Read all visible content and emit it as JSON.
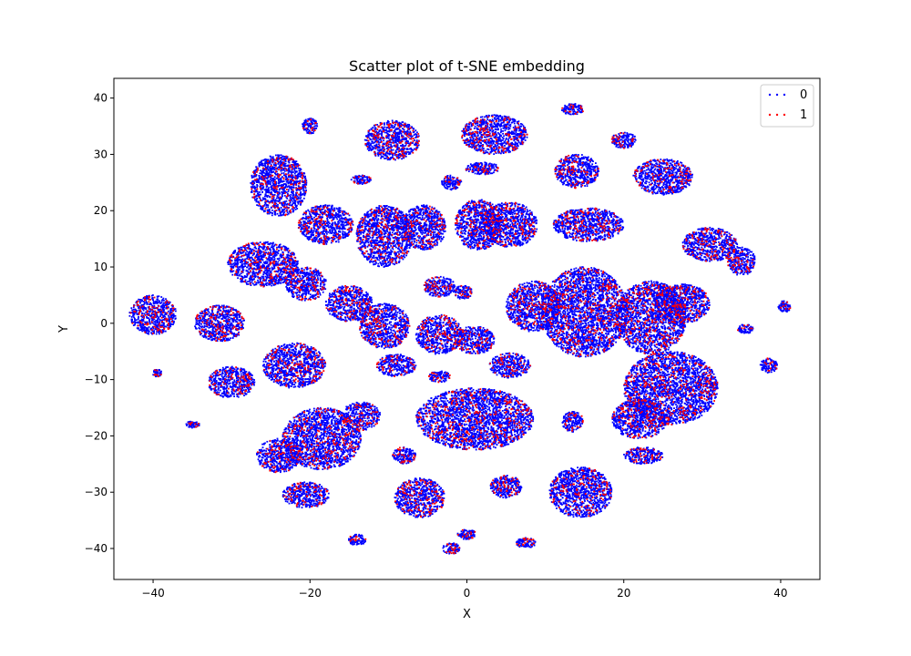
{
  "chart_data": {
    "type": "scatter",
    "title": "Scatter plot of t-SNE embedding",
    "xlabel": "X",
    "ylabel": "Y",
    "xlim": [
      -45,
      45
    ],
    "ylim": [
      -45.5,
      43.5
    ],
    "xticks": [
      -40,
      -20,
      0,
      20,
      40
    ],
    "yticks": [
      -40,
      -30,
      -20,
      -10,
      0,
      10,
      20,
      30,
      40
    ],
    "grid": false,
    "legend_position": "top-right",
    "series": [
      {
        "name": "0",
        "color": "#0000ff"
      },
      {
        "name": "1",
        "color": "#ff0000"
      }
    ],
    "red_fraction": 0.14,
    "clusters": [
      {
        "cx": -40.0,
        "cy": 1.5,
        "rx": 3.0,
        "ry": 3.5
      },
      {
        "cx": -31.5,
        "cy": 0.0,
        "rx": 3.2,
        "ry": 3.2
      },
      {
        "cx": -39.5,
        "cy": -8.8,
        "rx": 0.6,
        "ry": 0.7
      },
      {
        "cx": -35.0,
        "cy": -18.0,
        "rx": 0.9,
        "ry": 0.6
      },
      {
        "cx": -30.0,
        "cy": -10.5,
        "rx": 3.0,
        "ry": 2.8
      },
      {
        "cx": -24.0,
        "cy": 24.5,
        "rx": 3.6,
        "ry": 5.5
      },
      {
        "cx": -20.0,
        "cy": 35.0,
        "rx": 1.0,
        "ry": 1.4
      },
      {
        "cx": -18.0,
        "cy": 17.5,
        "rx": 3.5,
        "ry": 3.5
      },
      {
        "cx": -26.0,
        "cy": 10.5,
        "rx": 4.5,
        "ry": 4.0
      },
      {
        "cx": -20.5,
        "cy": 7.0,
        "rx": 2.6,
        "ry": 3.0
      },
      {
        "cx": -15.0,
        "cy": 3.5,
        "rx": 3.0,
        "ry": 3.2
      },
      {
        "cx": -10.5,
        "cy": -0.5,
        "rx": 3.2,
        "ry": 4.0
      },
      {
        "cx": -22.0,
        "cy": -7.5,
        "rx": 4.0,
        "ry": 4.0
      },
      {
        "cx": -18.5,
        "cy": -20.5,
        "rx": 5.0,
        "ry": 5.5
      },
      {
        "cx": -24.0,
        "cy": -23.5,
        "rx": 2.8,
        "ry": 3.0
      },
      {
        "cx": -20.5,
        "cy": -30.5,
        "rx": 3.0,
        "ry": 2.3
      },
      {
        "cx": -13.5,
        "cy": -16.5,
        "rx": 2.5,
        "ry": 2.5
      },
      {
        "cx": -13.5,
        "cy": 25.5,
        "rx": 1.3,
        "ry": 0.8
      },
      {
        "cx": -9.5,
        "cy": 32.5,
        "rx": 3.5,
        "ry": 3.5
      },
      {
        "cx": -10.5,
        "cy": 15.5,
        "rx": 3.6,
        "ry": 5.5
      },
      {
        "cx": -5.5,
        "cy": 17.0,
        "rx": 2.8,
        "ry": 4.0
      },
      {
        "cx": -9.0,
        "cy": -7.5,
        "rx": 2.5,
        "ry": 2.0
      },
      {
        "cx": -8.0,
        "cy": -23.5,
        "rx": 1.5,
        "ry": 1.5
      },
      {
        "cx": -14.0,
        "cy": -38.5,
        "rx": 1.1,
        "ry": 1.0
      },
      {
        "cx": -3.5,
        "cy": 6.5,
        "rx": 2.0,
        "ry": 1.8
      },
      {
        "cx": -0.5,
        "cy": 5.5,
        "rx": 1.2,
        "ry": 1.2
      },
      {
        "cx": -2.0,
        "cy": 25.0,
        "rx": 1.3,
        "ry": 1.3
      },
      {
        "cx": 1.5,
        "cy": 17.5,
        "rx": 3.0,
        "ry": 4.5
      },
      {
        "cx": 5.5,
        "cy": 17.5,
        "rx": 3.5,
        "ry": 4.0
      },
      {
        "cx": 3.5,
        "cy": 33.5,
        "rx": 4.2,
        "ry": 3.5
      },
      {
        "cx": 2.0,
        "cy": 27.5,
        "rx": 2.2,
        "ry": 1.1
      },
      {
        "cx": -3.5,
        "cy": -2.0,
        "rx": 3.0,
        "ry": 3.5
      },
      {
        "cx": 1.0,
        "cy": -3.0,
        "rx": 2.5,
        "ry": 2.5
      },
      {
        "cx": 5.5,
        "cy": -7.5,
        "rx": 2.6,
        "ry": 2.2
      },
      {
        "cx": -3.5,
        "cy": -9.5,
        "rx": 1.4,
        "ry": 1.0
      },
      {
        "cx": 1.0,
        "cy": -17.0,
        "rx": 7.5,
        "ry": 5.5
      },
      {
        "cx": -6.0,
        "cy": -31.0,
        "rx": 3.2,
        "ry": 3.5
      },
      {
        "cx": 5.0,
        "cy": -29.0,
        "rx": 2.0,
        "ry": 2.0
      },
      {
        "cx": 0.0,
        "cy": -37.5,
        "rx": 1.2,
        "ry": 0.9
      },
      {
        "cx": -2.0,
        "cy": -40.0,
        "rx": 1.1,
        "ry": 1.0
      },
      {
        "cx": 7.5,
        "cy": -39.0,
        "rx": 1.3,
        "ry": 0.9
      },
      {
        "cx": 14.5,
        "cy": -30.0,
        "rx": 4.0,
        "ry": 4.5
      },
      {
        "cx": 13.5,
        "cy": -17.5,
        "rx": 1.4,
        "ry": 1.8
      },
      {
        "cx": 13.5,
        "cy": 38.0,
        "rx": 1.4,
        "ry": 1.0
      },
      {
        "cx": 14.0,
        "cy": 27.0,
        "rx": 2.8,
        "ry": 3.0
      },
      {
        "cx": 20.0,
        "cy": 32.5,
        "rx": 1.6,
        "ry": 1.4
      },
      {
        "cx": 25.0,
        "cy": 26.0,
        "rx": 3.8,
        "ry": 3.2
      },
      {
        "cx": 15.5,
        "cy": 17.5,
        "rx": 4.5,
        "ry": 3.0
      },
      {
        "cx": 31.0,
        "cy": 14.0,
        "rx": 3.5,
        "ry": 3.0
      },
      {
        "cx": 35.0,
        "cy": 11.0,
        "rx": 1.8,
        "ry": 2.5
      },
      {
        "cx": 8.5,
        "cy": 3.0,
        "rx": 3.5,
        "ry": 4.5
      },
      {
        "cx": 15.0,
        "cy": 2.0,
        "rx": 5.5,
        "ry": 8.0
      },
      {
        "cx": 23.5,
        "cy": 1.0,
        "rx": 4.5,
        "ry": 6.5
      },
      {
        "cx": 27.5,
        "cy": 3.5,
        "rx": 3.5,
        "ry": 3.5
      },
      {
        "cx": 26.0,
        "cy": -11.5,
        "rx": 6.0,
        "ry": 6.5
      },
      {
        "cx": 22.0,
        "cy": -17.0,
        "rx": 3.5,
        "ry": 3.5
      },
      {
        "cx": 22.5,
        "cy": -23.5,
        "rx": 2.5,
        "ry": 1.5
      },
      {
        "cx": 35.5,
        "cy": -1.0,
        "rx": 1.0,
        "ry": 0.8
      },
      {
        "cx": 40.5,
        "cy": 3.0,
        "rx": 0.8,
        "ry": 1.0
      },
      {
        "cx": 38.5,
        "cy": -7.5,
        "rx": 1.1,
        "ry": 1.3
      }
    ]
  }
}
